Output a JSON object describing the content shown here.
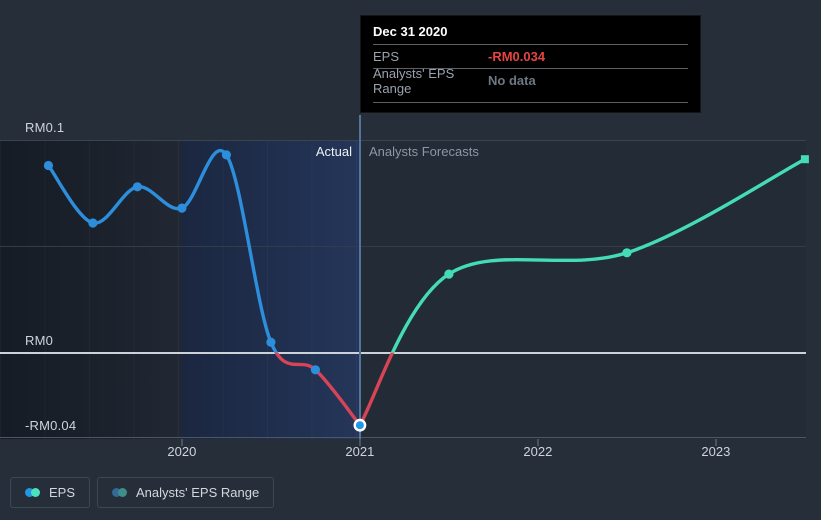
{
  "page": {
    "background": "#262e3a"
  },
  "tooltip": {
    "title": "Dec 31 2020",
    "rows": [
      {
        "label": "EPS",
        "value": "-RM0.034",
        "value_color": "#e64540"
      },
      {
        "label": "Analysts' EPS Range",
        "value": "No data",
        "value_color": "#6e7883"
      }
    ]
  },
  "annotations": {
    "actual_label": "Actual",
    "forecast_label": "Analysts Forecasts"
  },
  "legend": {
    "items": [
      {
        "label": "EPS",
        "chip_colors": [
          "#2398e0",
          "#4ae3c0"
        ]
      },
      {
        "label": "Analysts' EPS Range",
        "chip_colors": [
          "#316a94",
          "#3f8e8a"
        ]
      }
    ]
  },
  "chart_data": {
    "type": "line",
    "title": "",
    "xlabel": "",
    "ylabel": "",
    "currency": "RM",
    "xlim": [
      2018.978,
      2023.506
    ],
    "ylim": [
      -0.0405,
      0.1
    ],
    "grid": true,
    "legend_position": "bottom-left",
    "divider_t": 2021.0,
    "highlight_band_t": [
      2020.0,
      2021.0
    ],
    "x_ticks": [
      {
        "t": 2020,
        "label": "2020"
      },
      {
        "t": 2021,
        "label": "2021"
      },
      {
        "t": 2022,
        "label": "2022"
      },
      {
        "t": 2023,
        "label": "2023"
      }
    ],
    "y_gridlines": [
      {
        "value": 0.1,
        "label": "RM0.1",
        "style": "normal"
      },
      {
        "value": 0.05,
        "label": "",
        "style": "faint"
      },
      {
        "value": 0.0,
        "label": "RM0",
        "style": "zero"
      },
      {
        "value": -0.04,
        "label": "-RM0.04",
        "style": "edge"
      }
    ],
    "series": [
      {
        "name": "EPS",
        "kind": "actual",
        "color_positive": "#2d8edc",
        "color_negative": "#d64456",
        "marker": "circle",
        "points": [
          {
            "date": "Mar 31 2019",
            "t": 2019.25,
            "value": 0.088
          },
          {
            "date": "Jun 30 2019",
            "t": 2019.5,
            "value": 0.061
          },
          {
            "date": "Sep 30 2019",
            "t": 2019.75,
            "value": 0.078
          },
          {
            "date": "Dec 31 2019",
            "t": 2020.0,
            "value": 0.068
          },
          {
            "date": "Mar 31 2020",
            "t": 2020.25,
            "value": 0.093
          },
          {
            "date": "Jun 30 2020",
            "t": 2020.5,
            "value": 0.005
          },
          {
            "date": "Sep 30 2020",
            "t": 2020.75,
            "value": -0.008
          },
          {
            "date": "Dec 31 2020",
            "t": 2021.0,
            "value": -0.034,
            "highlight": true
          }
        ]
      },
      {
        "name": "Analysts Forecast EPS",
        "kind": "forecast",
        "color_positive": "#44dcb5",
        "color_negative": "#d64456",
        "marker": "circle",
        "end_marker": "square",
        "points": [
          {
            "date": "Dec 31 2020",
            "t": 2021.0,
            "value": -0.034,
            "no_marker": true
          },
          {
            "date": "Jun 30 2021",
            "t": 2021.5,
            "value": 0.037
          },
          {
            "date": "Jun 30 2022",
            "t": 2022.5,
            "value": 0.047
          },
          {
            "date": "Jun 30 2023",
            "t": 2023.5,
            "value": 0.091
          }
        ]
      }
    ]
  }
}
